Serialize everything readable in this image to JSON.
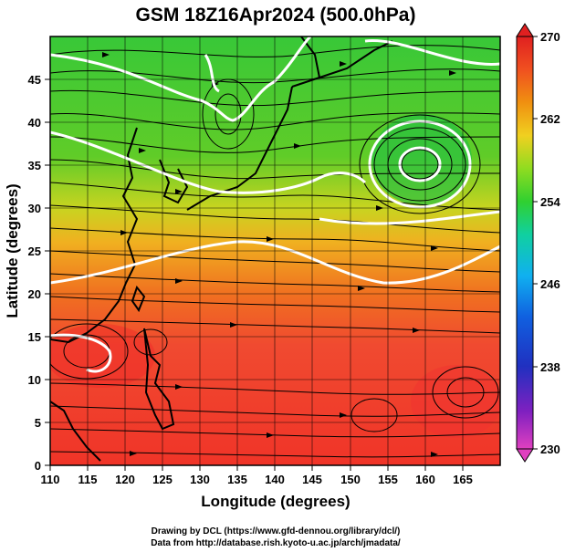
{
  "title": "GSM 18Z16Apr2024 (500.0hPa)",
  "credits": {
    "line1": "Drawing by DCL (https://www.gfd-dennou.org/library/dcl/)",
    "line2": "Data from http://database.rish.kyoto-u.ac.jp/arch/jmadata/"
  },
  "x_axis": {
    "label": "Longitude (degrees)",
    "range": [
      110,
      170
    ],
    "ticks": [
      "110",
      "115",
      "120",
      "125",
      "130",
      "135",
      "140",
      "145",
      "150",
      "155",
      "160",
      "165"
    ]
  },
  "y_axis": {
    "label": "Latitude  (degrees)",
    "range": [
      0,
      50
    ],
    "ticks": [
      "0",
      "5",
      "10",
      "15",
      "20",
      "25",
      "30",
      "35",
      "40",
      "45"
    ]
  },
  "colorbar": {
    "range": [
      230,
      270
    ],
    "tick_labels": [
      "230",
      "238",
      "246",
      "254",
      "262",
      "270"
    ],
    "palette": [
      "#e040c0",
      "#8020c0",
      "#2030c0",
      "#1060e0",
      "#10b0f0",
      "#10d0a0",
      "#30d030",
      "#90dc20",
      "#f0d020",
      "#f09010",
      "#f05020",
      "#e02020"
    ]
  },
  "map_colors": {
    "high_lat": "#30c830",
    "mid_lat": "#e8c820",
    "low_lat": "#f04030",
    "contour": "#ffffff",
    "streamline": "#000000",
    "coastline": "#000000"
  }
}
